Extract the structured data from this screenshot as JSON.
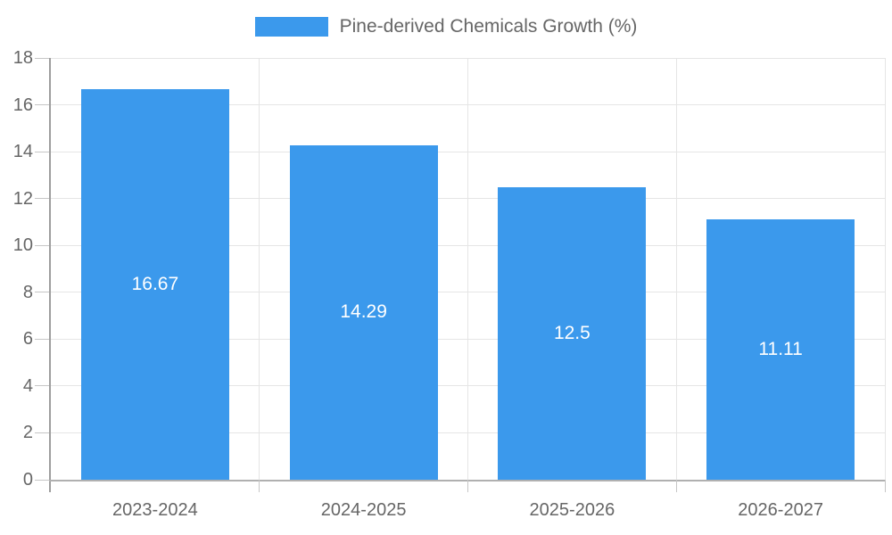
{
  "chart_data": {
    "type": "bar",
    "legend_label": "Pine-derived Chemicals Growth (%)",
    "categories": [
      "2023-2024",
      "2024-2025",
      "2025-2026",
      "2026-2027"
    ],
    "values": [
      16.67,
      14.29,
      12.5,
      11.11
    ],
    "title": "",
    "xlabel": "",
    "ylabel": "",
    "ylim": [
      0,
      18
    ],
    "ytick_step": 2,
    "grid": true,
    "legend_position": "top-center",
    "colors": {
      "bar": "#3B99EC",
      "grid": "#E5E5E5",
      "axis_y": "#9E9E9E",
      "axis_x": "#B0B0B0",
      "tick": "#C6C6C6",
      "text": "#666666",
      "bar_label": "#FFFFFF"
    }
  }
}
